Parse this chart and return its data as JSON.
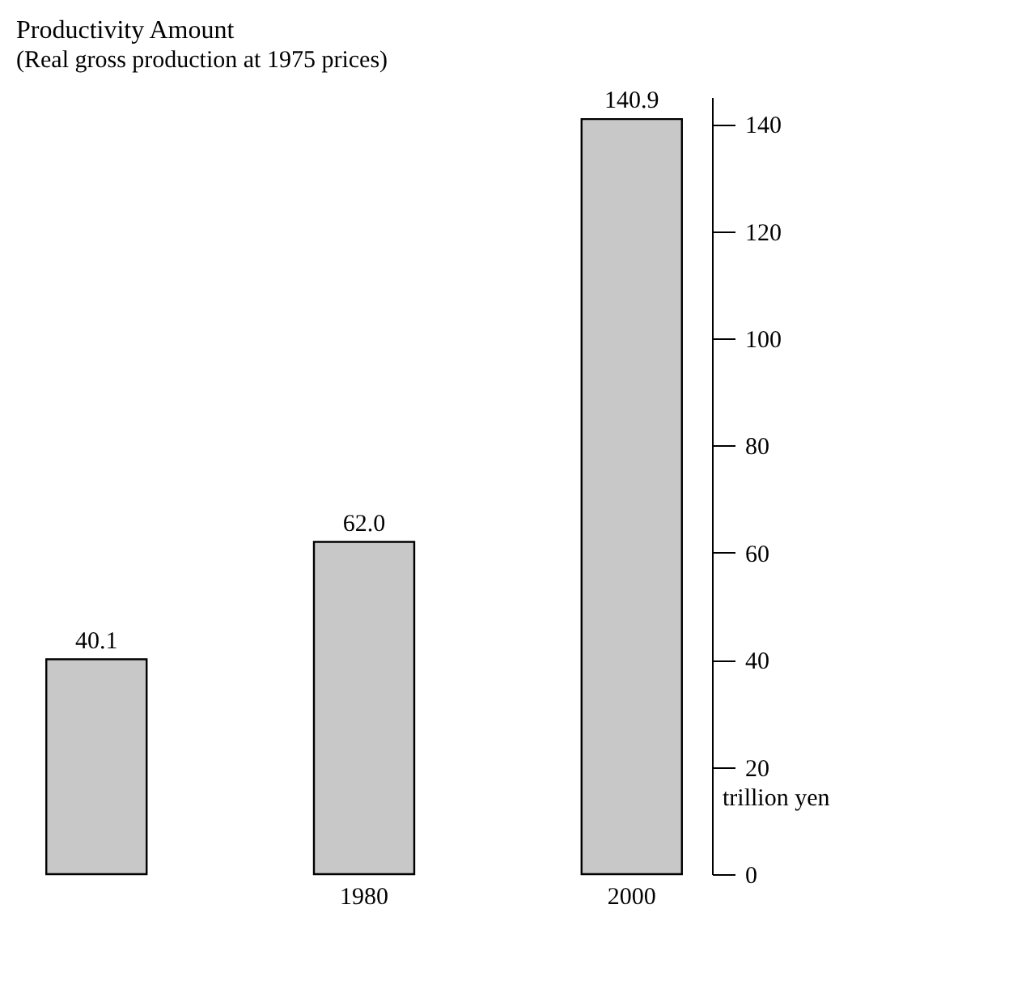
{
  "chart_data": {
    "type": "bar",
    "title": "Productivity Amount",
    "subtitle": "(Real gross production at 1975 prices)",
    "ylabel": "trillion yen",
    "categories": [
      null,
      "1980",
      "2000"
    ],
    "values": [
      40.1,
      62.0,
      140.9
    ],
    "value_labels": [
      "40.1",
      "62.0",
      "140.9"
    ],
    "color": "#c8c8c8",
    "ylim": [
      0,
      145
    ],
    "yticks": [
      0,
      20,
      40,
      60,
      80,
      100,
      120,
      140
    ],
    "grid": false
  }
}
